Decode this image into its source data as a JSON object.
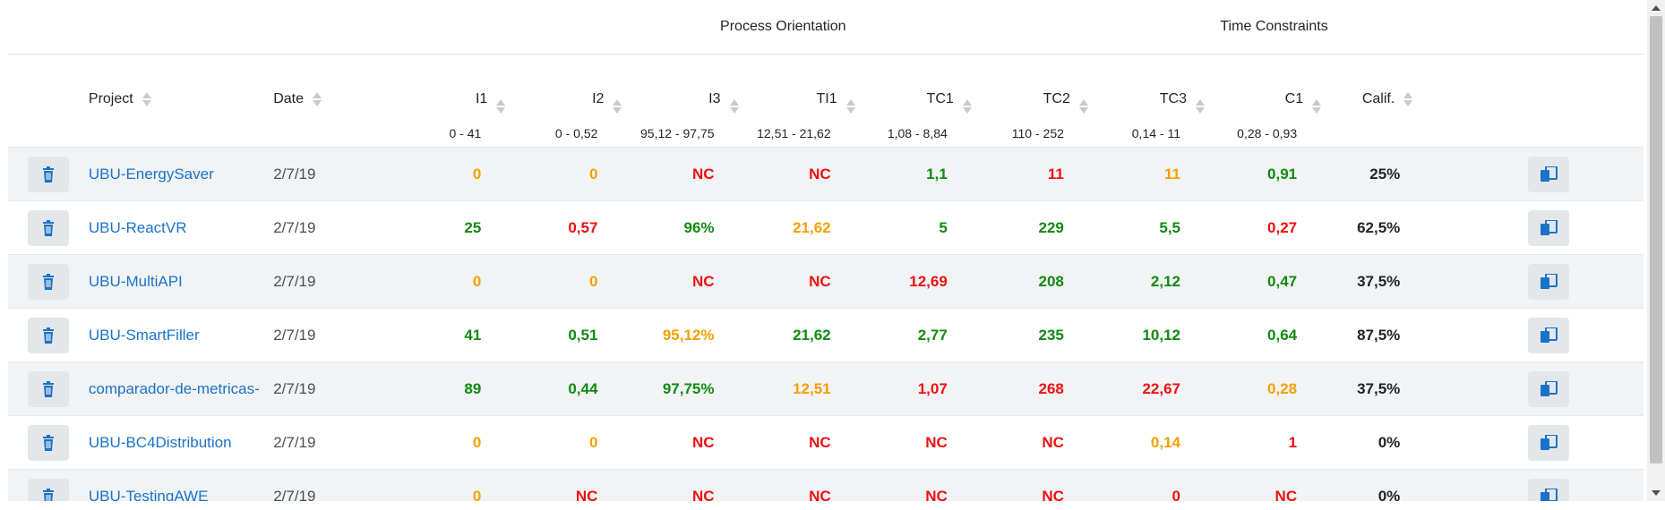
{
  "groups": {
    "process_orientation": "Process Orientation",
    "time_constraints": "Time Constraints"
  },
  "columns": [
    {
      "key": "project",
      "label": "Project",
      "range": ""
    },
    {
      "key": "date",
      "label": "Date",
      "range": ""
    },
    {
      "key": "i1",
      "label": "I1",
      "range": "0 - 41"
    },
    {
      "key": "i2",
      "label": "I2",
      "range": "0 - 0,52"
    },
    {
      "key": "i3",
      "label": "I3",
      "range": "95,12 - 97,75"
    },
    {
      "key": "ti1",
      "label": "TI1",
      "range": "12,51 - 21,62"
    },
    {
      "key": "tc1",
      "label": "TC1",
      "range": "1,08 - 8,84"
    },
    {
      "key": "tc2",
      "label": "TC2",
      "range": "110 - 252"
    },
    {
      "key": "tc3",
      "label": "TC3",
      "range": "0,14 - 11"
    },
    {
      "key": "c1",
      "label": "C1",
      "range": "0,28 - 0,93"
    },
    {
      "key": "calif",
      "label": "Calif.",
      "range": ""
    }
  ],
  "colors": {
    "green": "#118a11",
    "red": "#ee1111",
    "orange": "#f5a000",
    "link": "#1a73c8"
  },
  "rows": [
    {
      "project": "UBU-EnergySaver",
      "date": "2/7/19",
      "cells": [
        [
          "0",
          "orange"
        ],
        [
          "0",
          "orange"
        ],
        [
          "NC",
          "red"
        ],
        [
          "NC",
          "red"
        ],
        [
          "1,1",
          "green"
        ],
        [
          "11",
          "red"
        ],
        [
          "11",
          "orange"
        ],
        [
          "0,91",
          "green"
        ]
      ],
      "calif": "25%"
    },
    {
      "project": "UBU-ReactVR",
      "date": "2/7/19",
      "cells": [
        [
          "25",
          "green"
        ],
        [
          "0,57",
          "red"
        ],
        [
          "96%",
          "green"
        ],
        [
          "21,62",
          "orange"
        ],
        [
          "5",
          "green"
        ],
        [
          "229",
          "green"
        ],
        [
          "5,5",
          "green"
        ],
        [
          "0,27",
          "red"
        ]
      ],
      "calif": "62,5%"
    },
    {
      "project": "UBU-MultiAPI",
      "date": "2/7/19",
      "cells": [
        [
          "0",
          "orange"
        ],
        [
          "0",
          "orange"
        ],
        [
          "NC",
          "red"
        ],
        [
          "NC",
          "red"
        ],
        [
          "12,69",
          "red"
        ],
        [
          "208",
          "green"
        ],
        [
          "2,12",
          "green"
        ],
        [
          "0,47",
          "green"
        ]
      ],
      "calif": "37,5%"
    },
    {
      "project": "UBU-SmartFiller",
      "date": "2/7/19",
      "cells": [
        [
          "41",
          "green"
        ],
        [
          "0,51",
          "green"
        ],
        [
          "95,12%",
          "orange"
        ],
        [
          "21,62",
          "green"
        ],
        [
          "2,77",
          "green"
        ],
        [
          "235",
          "green"
        ],
        [
          "10,12",
          "green"
        ],
        [
          "0,64",
          "green"
        ]
      ],
      "calif": "87,5%"
    },
    {
      "project": "comparador-de-metricas-",
      "date": "2/7/19",
      "cells": [
        [
          "89",
          "green"
        ],
        [
          "0,44",
          "green"
        ],
        [
          "97,75%",
          "green"
        ],
        [
          "12,51",
          "orange"
        ],
        [
          "1,07",
          "red"
        ],
        [
          "268",
          "red"
        ],
        [
          "22,67",
          "red"
        ],
        [
          "0,28",
          "orange"
        ]
      ],
      "calif": "37,5%"
    },
    {
      "project": "UBU-BC4Distribution",
      "date": "2/7/19",
      "cells": [
        [
          "0",
          "orange"
        ],
        [
          "0",
          "orange"
        ],
        [
          "NC",
          "red"
        ],
        [
          "NC",
          "red"
        ],
        [
          "NC",
          "red"
        ],
        [
          "NC",
          "red"
        ],
        [
          "0,14",
          "orange"
        ],
        [
          "1",
          "red"
        ]
      ],
      "calif": "0%"
    },
    {
      "project": "UBU-TestingAWE",
      "date": "2/7/19",
      "cells": [
        [
          "0",
          "orange"
        ],
        [
          "NC",
          "red"
        ],
        [
          "NC",
          "red"
        ],
        [
          "NC",
          "red"
        ],
        [
          "NC",
          "red"
        ],
        [
          "NC",
          "red"
        ],
        [
          "0",
          "red"
        ],
        [
          "NC",
          "red"
        ]
      ],
      "calif": "0%"
    }
  ],
  "icons": {
    "delete": "trash-icon",
    "compare": "compare-icon"
  }
}
